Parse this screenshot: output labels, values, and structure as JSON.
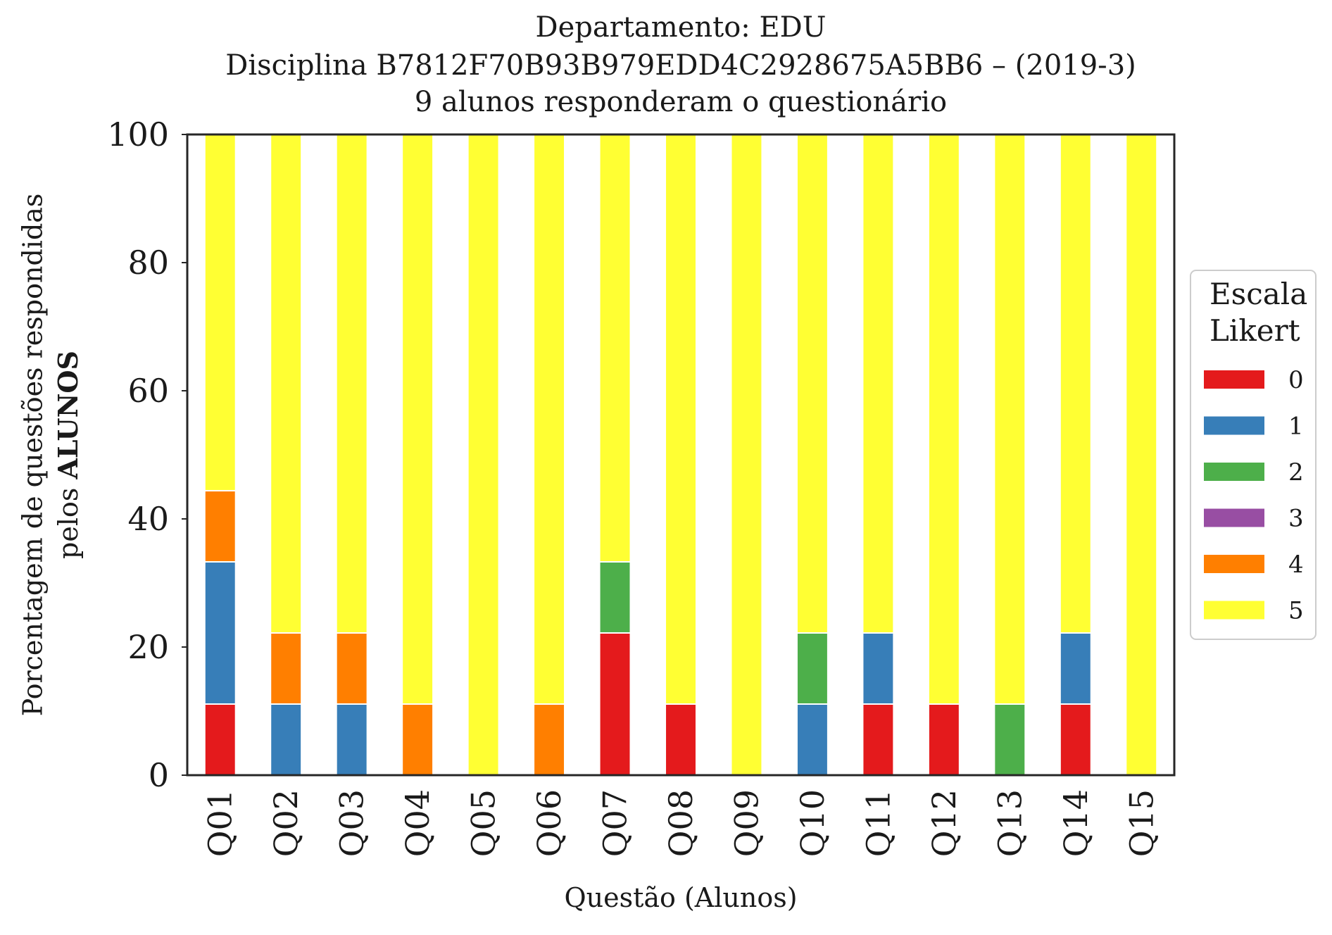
{
  "chart_data": {
    "type": "bar",
    "stacked": true,
    "title_lines": [
      "Departamento: EDU",
      "Disciplina B7812F70B93B979EDD4C2928675A5BB6 – (2019-3)",
      "9 alunos responderam o questionário"
    ],
    "xlabel": "Questão (Alunos)",
    "ylabel_line1": "Porcentagem de questões respondidas",
    "ylabel_line2_prefix": "pelos ",
    "ylabel_line2_bold": "ALUNOS",
    "ylim": [
      0,
      100
    ],
    "yticks": [
      "0",
      "20",
      "40",
      "60",
      "80",
      "100"
    ],
    "grid": false,
    "legend_position": "right",
    "legend_title_lines": [
      "Escala",
      "Likert"
    ],
    "categories": [
      "Q01",
      "Q02",
      "Q03",
      "Q04",
      "Q05",
      "Q06",
      "Q07",
      "Q08",
      "Q09",
      "Q10",
      "Q11",
      "Q12",
      "Q13",
      "Q14",
      "Q15"
    ],
    "series": [
      {
        "name": "0",
        "color": "#e41a1c",
        "values": [
          11.1,
          0,
          0,
          0,
          0,
          0,
          22.2,
          11.1,
          0,
          0,
          11.1,
          11.1,
          0,
          11.1,
          0
        ]
      },
      {
        "name": "1",
        "color": "#377eb8",
        "values": [
          22.2,
          11.1,
          11.1,
          0,
          0,
          0,
          0,
          0,
          0,
          11.1,
          11.1,
          0,
          0,
          11.1,
          0
        ]
      },
      {
        "name": "2",
        "color": "#4daf4a",
        "values": [
          0,
          0,
          0,
          0,
          0,
          0,
          11.1,
          0,
          0,
          11.1,
          0,
          0,
          11.1,
          0,
          0
        ]
      },
      {
        "name": "3",
        "color": "#984ea3",
        "values": [
          0,
          0,
          0,
          0,
          0,
          0,
          0,
          0,
          0,
          0,
          0,
          0,
          0,
          0,
          0
        ]
      },
      {
        "name": "4",
        "color": "#ff7f00",
        "values": [
          11.1,
          11.1,
          11.1,
          11.1,
          0,
          11.1,
          0,
          0,
          0,
          0,
          0,
          0,
          0,
          0,
          0
        ]
      },
      {
        "name": "5",
        "color": "#ffff33",
        "values": [
          55.6,
          77.8,
          77.8,
          88.9,
          100,
          88.9,
          66.7,
          88.9,
          100,
          77.8,
          77.8,
          88.9,
          88.9,
          77.8,
          100
        ]
      }
    ]
  }
}
